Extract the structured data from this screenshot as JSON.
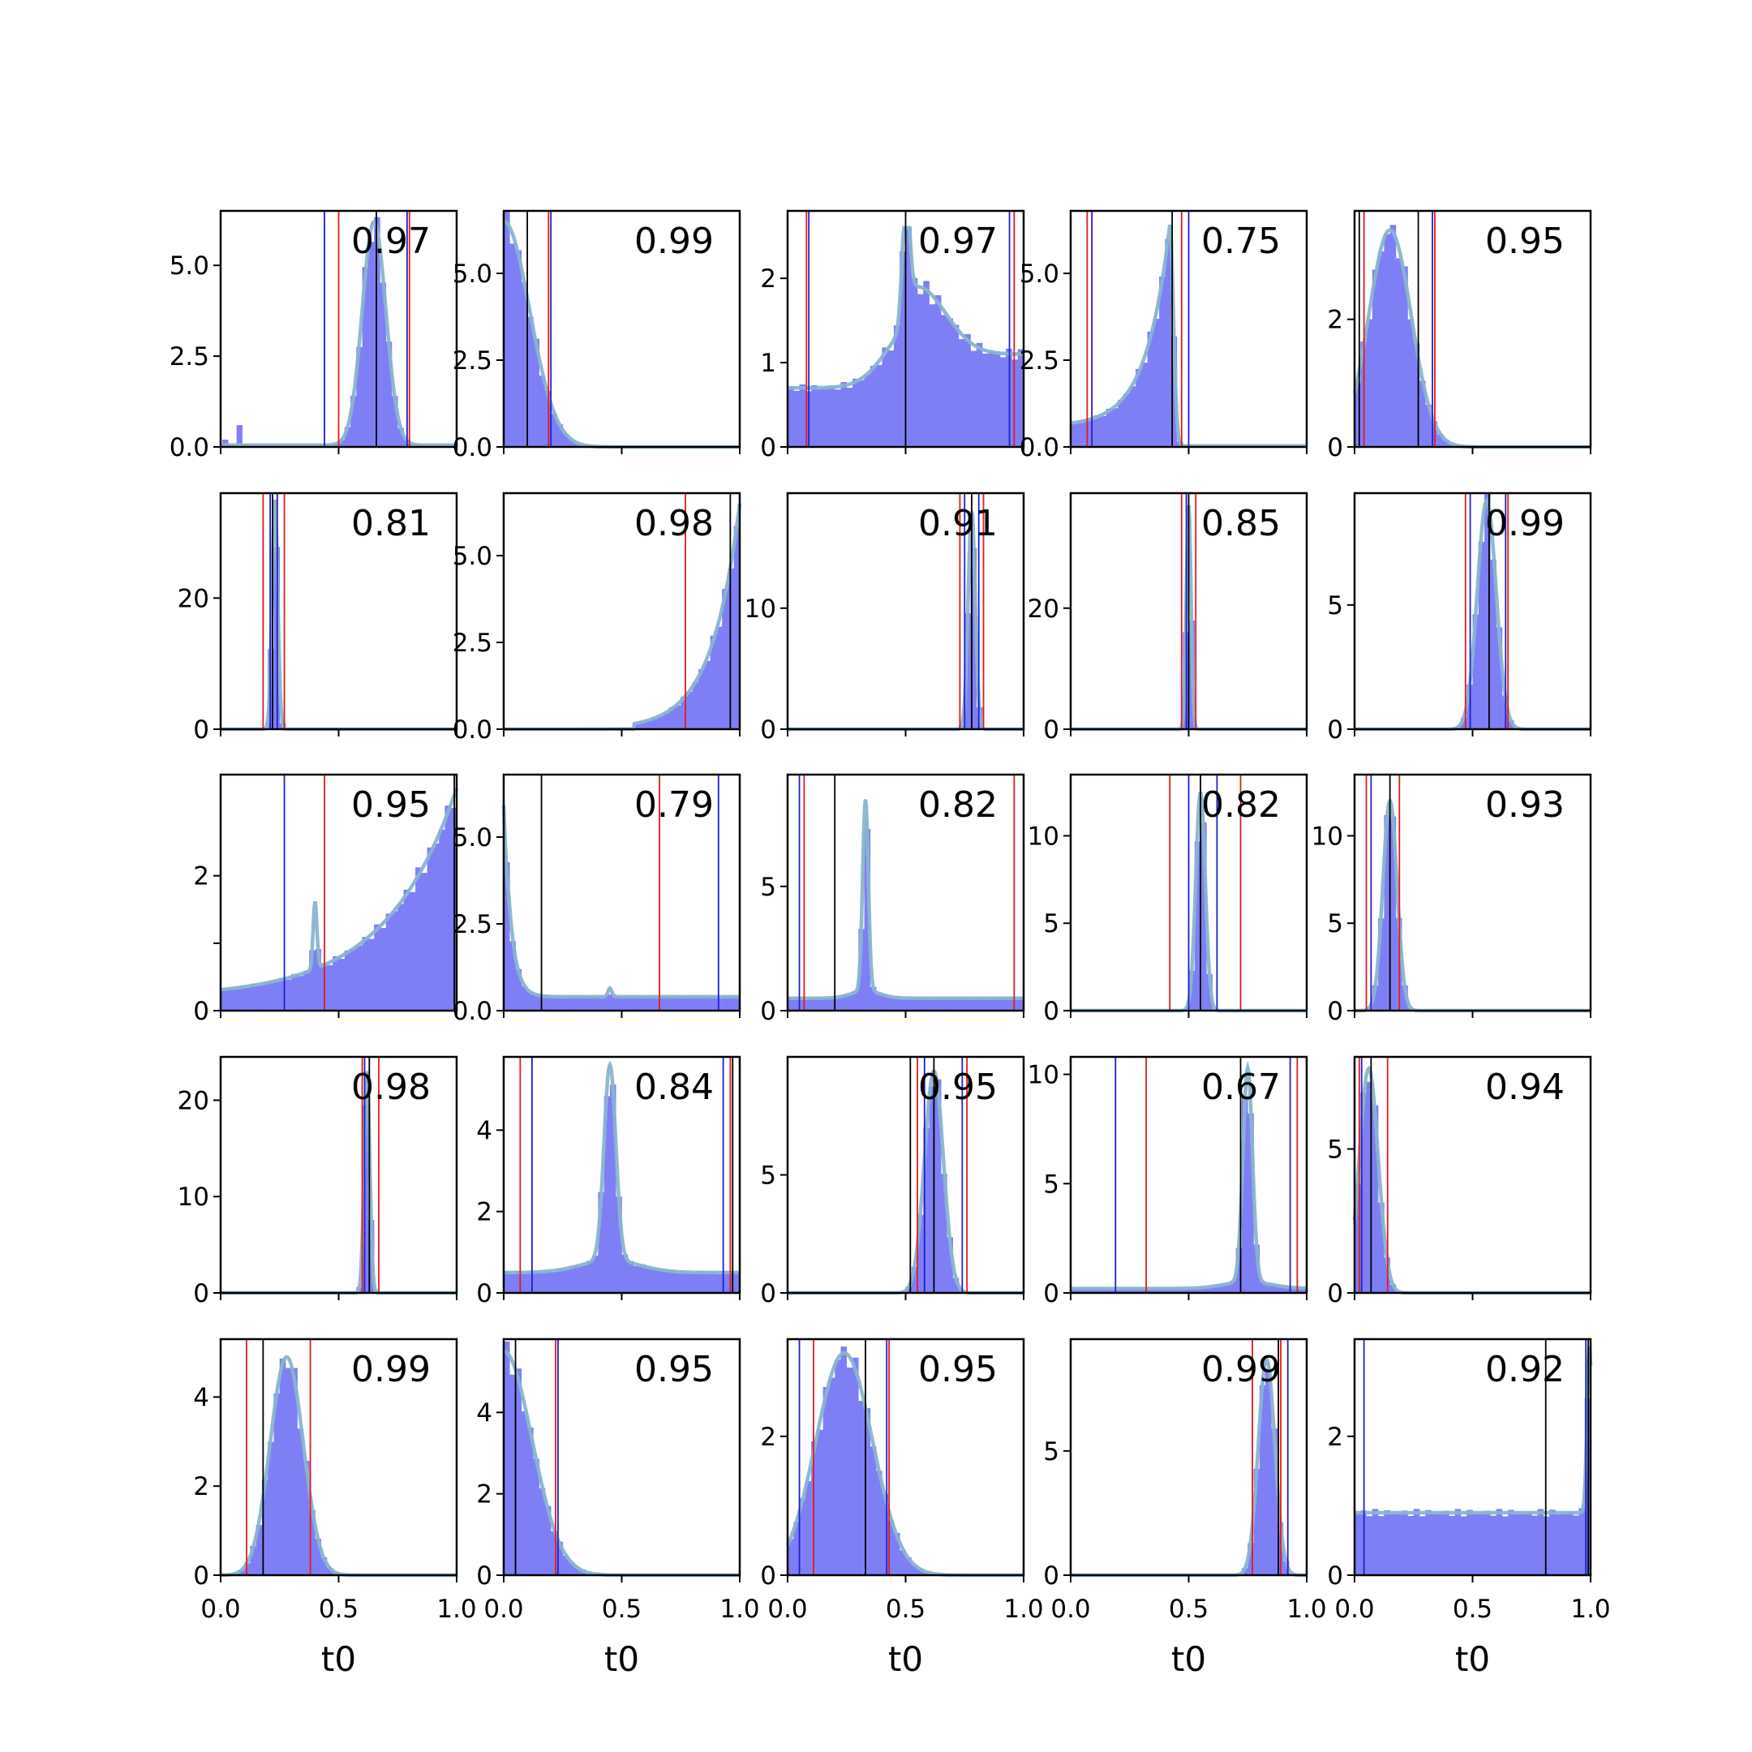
{
  "chart_data": {
    "type": "histogram-grid",
    "rows": 5,
    "cols": 5,
    "xlabel": "t0",
    "xlim": [
      0,
      1
    ],
    "xticks": [
      0.0,
      0.5,
      1.0
    ],
    "xtick_labels": [
      "0.0",
      "0.5",
      "1.0"
    ],
    "colors": {
      "hist": "#7f7ff5",
      "kde": "#8ab4cf",
      "black_line": "#000000",
      "red_line": "#e41a1c",
      "blue_line": "#2020cc"
    },
    "panels": [
      {
        "score": "0.97",
        "ylim": [
          0,
          6.5
        ],
        "yticks": [
          0,
          2.5,
          5
        ],
        "ytick_labels": [
          "0.0",
          "2.5",
          "5.0"
        ],
        "shape": "peak",
        "peak": 0.65,
        "width": 0.05,
        "height": 6.2,
        "baseline": 0.05,
        "black": [
          0.66
        ],
        "red": [
          0.5,
          0.8
        ],
        "blue": [
          0.44,
          0.79
        ],
        "extra_bars": [
          [
            0.02,
            0.2
          ],
          [
            0.08,
            0.6
          ]
        ]
      },
      {
        "score": "0.99",
        "ylim": [
          0,
          6.8
        ],
        "yticks": [
          0,
          2.5,
          5
        ],
        "ytick_labels": [
          "0.0",
          "2.5",
          "5.0"
        ],
        "shape": "decay",
        "peak": 0.0,
        "width": 0.11,
        "height": 6.5,
        "baseline": 0.0,
        "black": [
          0.1
        ],
        "red": [
          0.19
        ],
        "blue": [
          0.2
        ]
      },
      {
        "score": "0.97",
        "ylim": [
          0,
          2.8
        ],
        "yticks": [
          0,
          1,
          2
        ],
        "ytick_labels": [
          "0",
          "1",
          "2"
        ],
        "shape": "peak-on-rise",
        "peak": 0.5,
        "width": 0.015,
        "height": 2.6,
        "baseline": 0.7,
        "black": [
          0.5
        ],
        "red": [
          0.08,
          0.96
        ],
        "blue": [
          0.09,
          0.94
        ]
      },
      {
        "score": "0.75",
        "ylim": [
          0,
          6.8
        ],
        "yticks": [
          0,
          2.5,
          5
        ],
        "ytick_labels": [
          "0.0",
          "2.5",
          "5.0"
        ],
        "shape": "right-skew",
        "peak": 0.42,
        "width": 0.1,
        "height": 6.4,
        "baseline": 0.6,
        "black": [
          0.43
        ],
        "red": [
          0.07,
          0.47
        ],
        "blue": [
          0.09,
          0.5
        ]
      },
      {
        "score": "0.95",
        "ylim": [
          0,
          3.7
        ],
        "yticks": [
          0,
          2
        ],
        "ytick_labels": [
          "0",
          "2"
        ],
        "shape": "peak",
        "peak": 0.15,
        "width": 0.09,
        "height": 3.4,
        "baseline": 0.0,
        "black": [
          0.02,
          0.27
        ],
        "red": [
          0.04,
          0.34
        ],
        "blue": [
          0.33
        ]
      },
      {
        "score": "0.81",
        "ylim": [
          0,
          36
        ],
        "yticks": [
          0,
          20
        ],
        "ytick_labels": [
          "0",
          "20"
        ],
        "shape": "peak",
        "peak": 0.23,
        "width": 0.012,
        "height": 35,
        "baseline": 0.0,
        "black": [
          0.22
        ],
        "red": [
          0.18,
          0.27
        ],
        "blue": [
          0.21,
          0.24
        ]
      },
      {
        "score": "0.98",
        "ylim": [
          0,
          6.8
        ],
        "yticks": [
          0,
          2.5,
          5
        ],
        "ytick_labels": [
          "0.0",
          "2.5",
          "5.0"
        ],
        "shape": "right-rise",
        "peak": 1.0,
        "width": 0.12,
        "height": 6.5,
        "baseline": 0.0,
        "black": [
          0.96
        ],
        "red": [
          0.77
        ],
        "blue": []
      },
      {
        "score": "0.91",
        "ylim": [
          0,
          19.5
        ],
        "yticks": [
          0,
          10
        ],
        "ytick_labels": [
          "0",
          "10"
        ],
        "shape": "peak",
        "peak": 0.78,
        "width": 0.015,
        "height": 18,
        "baseline": 0.0,
        "black": [
          0.78
        ],
        "red": [
          0.73,
          0.83
        ],
        "blue": [
          0.75,
          0.81
        ]
      },
      {
        "score": "0.85",
        "ylim": [
          0,
          39
        ],
        "yticks": [
          0,
          20
        ],
        "ytick_labels": [
          "0",
          "20"
        ],
        "shape": "peak",
        "peak": 0.5,
        "width": 0.01,
        "height": 37,
        "baseline": 0.0,
        "black": [
          0.5
        ],
        "red": [
          0.47,
          0.53
        ],
        "blue": [
          0.49
        ]
      },
      {
        "score": "0.99",
        "ylim": [
          0,
          9.5
        ],
        "yticks": [
          0,
          5
        ],
        "ytick_labels": [
          "0",
          "5"
        ],
        "shape": "peak",
        "peak": 0.56,
        "width": 0.04,
        "height": 9.2,
        "baseline": 0.0,
        "black": [
          0.57
        ],
        "red": [
          0.47,
          0.65
        ],
        "blue": [
          0.49,
          0.64
        ]
      },
      {
        "score": "0.95",
        "ylim": [
          0,
          3.5
        ],
        "yticks": [
          0,
          1,
          2
        ],
        "ytick_labels": [
          "0",
          "",
          "2"
        ],
        "shape": "right-rise-spike",
        "peak": 1.0,
        "width": 0.3,
        "height": 3.3,
        "baseline": 0.2,
        "spike": 0.4,
        "spike_height": 1.4,
        "black": [
          0.99
        ],
        "red": [
          0.44
        ],
        "blue": [
          0.27
        ]
      },
      {
        "score": "0.79",
        "ylim": [
          0,
          6.8
        ],
        "yticks": [
          0,
          2.5,
          5
        ],
        "ytick_labels": [
          "0.0",
          "2.5",
          "5.0"
        ],
        "shape": "decay-flat",
        "peak": 0.0,
        "width": 0.03,
        "height": 6.4,
        "baseline": 0.4,
        "black": [
          0.16
        ],
        "red": [
          0.66
        ],
        "blue": [
          0.91
        ]
      },
      {
        "score": "0.82",
        "ylim": [
          0,
          9.5
        ],
        "yticks": [
          0,
          5
        ],
        "ytick_labels": [
          "0",
          "5"
        ],
        "shape": "peak-flat",
        "peak": 0.33,
        "width": 0.012,
        "height": 8.2,
        "baseline": 0.5,
        "black": [
          0.2
        ],
        "red": [
          0.07,
          0.96
        ],
        "blue": [
          0.05
        ]
      },
      {
        "score": "0.82",
        "ylim": [
          0,
          13.5
        ],
        "yticks": [
          0,
          5,
          10
        ],
        "ytick_labels": [
          "0",
          "5",
          "10"
        ],
        "shape": "peak",
        "peak": 0.55,
        "width": 0.02,
        "height": 12.5,
        "baseline": 0.0,
        "black": [
          0.55
        ],
        "red": [
          0.42,
          0.72
        ],
        "blue": [
          0.5,
          0.62
        ]
      },
      {
        "score": "0.93",
        "ylim": [
          0,
          13.5
        ],
        "yticks": [
          0,
          5,
          10
        ],
        "ytick_labels": [
          "0",
          "5",
          "10"
        ],
        "shape": "peak",
        "peak": 0.15,
        "width": 0.03,
        "height": 12,
        "baseline": 0.0,
        "black": [
          0.15
        ],
        "red": [
          0.05,
          0.19
        ],
        "blue": [
          0.07
        ]
      },
      {
        "score": "0.98",
        "ylim": [
          0,
          24.5
        ],
        "yticks": [
          0,
          10,
          20
        ],
        "ytick_labels": [
          "0",
          "10",
          "20"
        ],
        "shape": "peak",
        "peak": 0.62,
        "width": 0.012,
        "height": 23,
        "baseline": 0.0,
        "black": [
          0.63
        ],
        "red": [
          0.6,
          0.67
        ],
        "blue": [
          0.61
        ]
      },
      {
        "score": "0.84",
        "ylim": [
          0,
          5.8
        ],
        "yticks": [
          0,
          2,
          4
        ],
        "ytick_labels": [
          "0",
          "2",
          "4"
        ],
        "shape": "peak-flat",
        "peak": 0.45,
        "width": 0.025,
        "height": 5.3,
        "baseline": 0.5,
        "black": [
          0.97
        ],
        "red": [
          0.07,
          0.96
        ],
        "blue": [
          0.12,
          0.93
        ]
      },
      {
        "score": "0.95",
        "ylim": [
          0,
          10
        ],
        "yticks": [
          0,
          5
        ],
        "ytick_labels": [
          "0",
          "5"
        ],
        "shape": "peak",
        "peak": 0.62,
        "width": 0.04,
        "height": 9.4,
        "baseline": 0.0,
        "black": [
          0.52,
          0.62
        ],
        "red": [
          0.55,
          0.76
        ],
        "blue": [
          0.58,
          0.74
        ]
      },
      {
        "score": "0.67",
        "ylim": [
          0,
          10.8
        ],
        "yticks": [
          0,
          5,
          10
        ],
        "ytick_labels": [
          "0",
          "5",
          "10"
        ],
        "shape": "peak-flat",
        "peak": 0.75,
        "width": 0.02,
        "height": 10,
        "baseline": 0.2,
        "black": [
          0.72
        ],
        "red": [
          0.32,
          0.96
        ],
        "blue": [
          0.19,
          0.93
        ]
      },
      {
        "score": "0.94",
        "ylim": [
          0,
          8.2
        ],
        "yticks": [
          0,
          5
        ],
        "ytick_labels": [
          "0",
          "5"
        ],
        "shape": "peak",
        "peak": 0.06,
        "width": 0.04,
        "height": 7.8,
        "baseline": 0.0,
        "black": [
          0.07
        ],
        "red": [
          0.02,
          0.14
        ],
        "blue": [
          0.03
        ]
      },
      {
        "score": "0.99",
        "ylim": [
          0,
          5.3
        ],
        "yticks": [
          0,
          2,
          4
        ],
        "ytick_labels": [
          "0",
          "2",
          "4"
        ],
        "shape": "peak",
        "peak": 0.28,
        "width": 0.07,
        "height": 4.9,
        "baseline": 0.0,
        "black": [
          0.18
        ],
        "red": [
          0.11,
          0.38
        ],
        "blue": []
      },
      {
        "score": "0.95",
        "ylim": [
          0,
          5.8
        ],
        "yticks": [
          0,
          2,
          4
        ],
        "ytick_labels": [
          "0",
          "2",
          "4"
        ],
        "shape": "decay",
        "peak": 0.0,
        "width": 0.12,
        "height": 5.5,
        "baseline": 0.0,
        "black": [
          0.05
        ],
        "red": [
          0.22
        ],
        "blue": [
          0.23
        ]
      },
      {
        "score": "0.95",
        "ylim": [
          0,
          3.4
        ],
        "yticks": [
          0,
          2
        ],
        "ytick_labels": [
          "0",
          "2"
        ],
        "shape": "peak",
        "peak": 0.24,
        "width": 0.12,
        "height": 3.2,
        "baseline": 0.0,
        "black": [
          0.33
        ],
        "red": [
          0.11,
          0.43
        ],
        "blue": [
          0.05,
          0.42
        ]
      },
      {
        "score": "0.99",
        "ylim": [
          0,
          9.5
        ],
        "yticks": [
          0,
          5
        ],
        "ytick_labels": [
          "0",
          "5"
        ],
        "shape": "peak",
        "peak": 0.83,
        "width": 0.035,
        "height": 8.7,
        "baseline": 0.0,
        "black": [
          0.88
        ],
        "red": [
          0.77,
          0.89
        ],
        "blue": [
          0.92
        ]
      },
      {
        "score": "0.92",
        "ylim": [
          0,
          3.4
        ],
        "yticks": [
          0,
          2
        ],
        "ytick_labels": [
          "0",
          "2"
        ],
        "shape": "flat-spike-right",
        "peak": 1.0,
        "width": 0.01,
        "height": 3.3,
        "baseline": 0.9,
        "black": [
          0.81,
          0.99
        ],
        "red": [],
        "blue": [
          0.04,
          0.98
        ]
      }
    ]
  }
}
